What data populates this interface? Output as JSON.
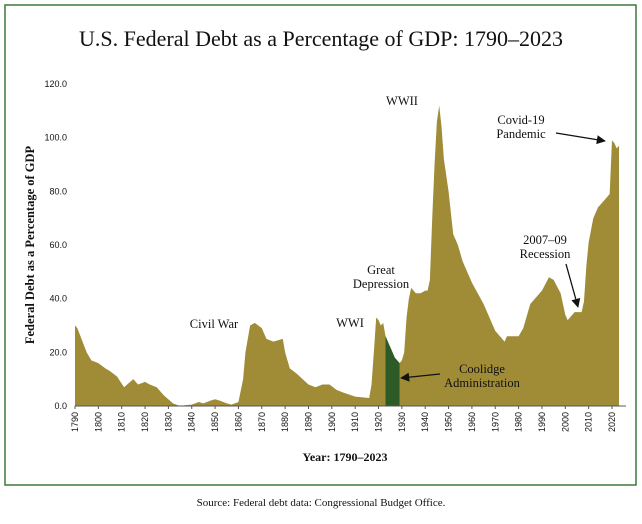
{
  "chart_data": {
    "type": "area",
    "title": "U.S. Federal Debt as a Percentage of GDP: 1790–2023",
    "y_label": "Federal Debt as a Percentage of GDP",
    "x_label": "Year: 1790–2023",
    "source": "Source: Federal debt data: Congressional Budget Office.",
    "x": [
      1790,
      1791,
      1795,
      1797,
      1800,
      1803,
      1805,
      1808,
      1811,
      1815,
      1817,
      1820,
      1822,
      1825,
      1828,
      1832,
      1835,
      1837,
      1840,
      1843,
      1845,
      1848,
      1850,
      1852,
      1855,
      1857,
      1860,
      1862,
      1863,
      1865,
      1867,
      1870,
      1872,
      1875,
      1879,
      1880,
      1882,
      1885,
      1890,
      1893,
      1896,
      1899,
      1902,
      1905,
      1910,
      1916,
      1917,
      1918,
      1919,
      1920,
      1921,
      1922,
      1923,
      1924,
      1925,
      1926,
      1927,
      1928,
      1929,
      1930,
      1931,
      1932,
      1933,
      1934,
      1936,
      1938,
      1940,
      1941,
      1942,
      1943,
      1944,
      1945,
      1946,
      1947,
      1948,
      1950,
      1952,
      1954,
      1956,
      1960,
      1965,
      1970,
      1974,
      1975,
      1980,
      1982,
      1985,
      1990,
      1993,
      1995,
      1998,
      2000,
      2001,
      2004,
      2007,
      2008,
      2009,
      2010,
      2012,
      2014,
      2016,
      2018,
      2019,
      2020,
      2021,
      2022,
      2023
    ],
    "series": [
      {
        "name": "Federal debt",
        "color": "#a08c37",
        "values": [
          30,
          29,
          20,
          17,
          16,
          14,
          13,
          11,
          7,
          10,
          8,
          9,
          8,
          7,
          4,
          1,
          0,
          0.3,
          0.5,
          1.5,
          1,
          2,
          2.5,
          2,
          1,
          0.5,
          1.5,
          10,
          20,
          30,
          31,
          29,
          25,
          24,
          25,
          20,
          14,
          12,
          8,
          7,
          8,
          8,
          6,
          5,
          3.5,
          3,
          8,
          20,
          33,
          32,
          30,
          31,
          26,
          24,
          22,
          20,
          18,
          17,
          16,
          17,
          20,
          33,
          40,
          44,
          42,
          42,
          43,
          43,
          47,
          70,
          90,
          106,
          112,
          104,
          92,
          80,
          64,
          60,
          54,
          46,
          38,
          28,
          24,
          26,
          26,
          29,
          38,
          43,
          48,
          47,
          42,
          34,
          32,
          35,
          35,
          39,
          52,
          61,
          70,
          74,
          76,
          78,
          79,
          99,
          98,
          96,
          97
        ]
      }
    ],
    "highlight": {
      "from": 1923,
      "to": 1929,
      "color": "#2d5a27"
    },
    "xlim": [
      1790,
      2026
    ],
    "ylim": [
      0,
      120
    ],
    "xticks": [
      1790,
      1800,
      1810,
      1820,
      1830,
      1840,
      1850,
      1860,
      1870,
      1880,
      1890,
      1900,
      1910,
      1920,
      1930,
      1940,
      1950,
      1960,
      1970,
      1980,
      1990,
      2000,
      2010,
      2020
    ],
    "yticks": [
      {
        "value": 0,
        "label": "0.0"
      },
      {
        "value": 20,
        "label": "20.0"
      },
      {
        "value": 40,
        "label": "40.0"
      },
      {
        "value": 60,
        "label": "60.0"
      },
      {
        "value": 80,
        "label": "80.0"
      },
      {
        "value": 100,
        "label": "100.0"
      },
      {
        "value": 120,
        "label": "120.0"
      }
    ],
    "grid": false,
    "annotations": [
      {
        "lines": [
          "Civil War"
        ]
      },
      {
        "lines": [
          "WWI"
        ]
      },
      {
        "lines": [
          "Great",
          "Depression"
        ]
      },
      {
        "lines": [
          "WWII"
        ]
      },
      {
        "lines": [
          "Coolidge",
          "Administration"
        ]
      },
      {
        "lines": [
          "2007–09",
          "Recession"
        ]
      },
      {
        "lines": [
          "Covid-19",
          "Pandemic"
        ]
      }
    ]
  }
}
